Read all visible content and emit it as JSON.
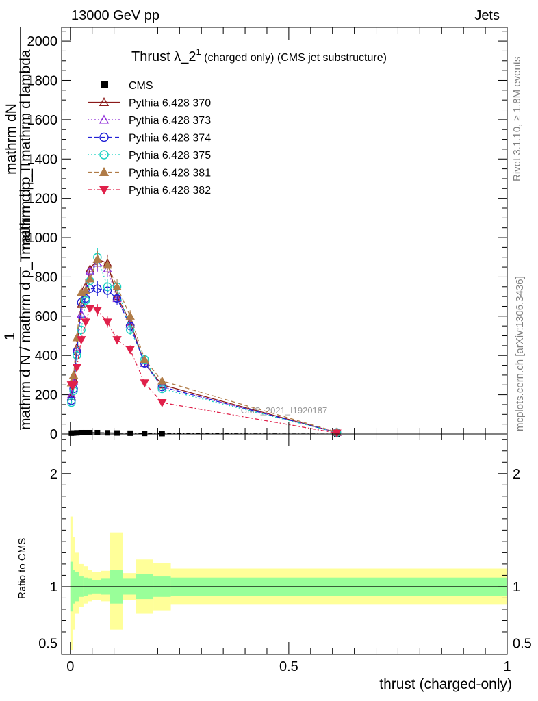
{
  "header": {
    "energy_label": "13000 GeV pp",
    "process_label": "Jets",
    "side_label_rivet": "Rivet 3.1.10, ≥ 1.8M events",
    "side_label_mcplots": "mcplots.cern.ch [arXiv:1306.3436]",
    "watermark": "CMS_2021_I1920187"
  },
  "chart_data": [
    {
      "type": "line",
      "title_main": "Thrust λ_2",
      "title_sup": "1",
      "title_suffix": " (charged only) (CMS jet substructure)",
      "ylabel_numerator": "mathrm dN",
      "ylabel_numerator_overlap": "mathrm d p_T mathrm d lambda",
      "ylabel_one": "1",
      "ylabel_denominator": "mathrm d N / mathrm d p_T mathrm d p_T",
      "xlim": [
        -0.02,
        1.0
      ],
      "ylim": [
        0,
        2070
      ],
      "yticks": [
        "0",
        "200",
        "400",
        "600",
        "800",
        "1000",
        "1200",
        "1400",
        "1600",
        "1800",
        "2000"
      ],
      "x": [
        0.0025,
        0.0075,
        0.015,
        0.025,
        0.035,
        0.045,
        0.062,
        0.085,
        0.107,
        0.137,
        0.17,
        0.21,
        0.61
      ],
      "series": [
        {
          "name": "CMS",
          "color": "#000000",
          "marker": "square",
          "dash": "",
          "values": [
            4,
            5,
            6,
            7,
            7,
            7,
            7,
            6,
            5,
            4,
            3,
            2,
            0.1
          ]
        },
        {
          "name": "Pythia 6.428 370",
          "color": "#8B1A1A",
          "marker": "triangle-open",
          "dash": "",
          "values": [
            190,
            280,
            440,
            660,
            750,
            840,
            890,
            870,
            700,
            570,
            360,
            250,
            8
          ]
        },
        {
          "name": "Pythia 6.428 373",
          "color": "#8E2BD8",
          "marker": "triangle-open",
          "dash": "2,3",
          "values": [
            200,
            270,
            430,
            610,
            730,
            830,
            870,
            840,
            690,
            560,
            360,
            240,
            8
          ]
        },
        {
          "name": "Pythia 6.428 374",
          "color": "#2121D6",
          "marker": "circle-open",
          "dash": "6,4",
          "values": [
            170,
            230,
            420,
            670,
            690,
            740,
            740,
            730,
            690,
            550,
            360,
            240,
            8
          ]
        },
        {
          "name": "Pythia 6.428 375",
          "color": "#16D1C1",
          "marker": "circle-open",
          "dash": "2,3",
          "values": [
            160,
            220,
            400,
            530,
            680,
            780,
            900,
            750,
            750,
            530,
            380,
            230,
            8
          ]
        },
        {
          "name": "Pythia 6.428 381",
          "color": "#B07C48",
          "marker": "triangle-filled",
          "dash": "6,4",
          "values": [
            260,
            300,
            490,
            720,
            730,
            790,
            890,
            860,
            750,
            600,
            380,
            270,
            10
          ]
        },
        {
          "name": "Pythia 6.428 382",
          "color": "#E0204A",
          "marker": "triangle-down-filled",
          "dash": "6,3,2,3",
          "values": [
            250,
            250,
            340,
            480,
            570,
            640,
            630,
            570,
            480,
            430,
            260,
            160,
            5
          ]
        }
      ]
    },
    {
      "type": "area",
      "ylabel": "Ratio to CMS",
      "xlabel": "thrust (charged-only)",
      "xlim": [
        -0.02,
        1.0
      ],
      "ylim": [
        0.4,
        2.35
      ],
      "xticks": [
        "0",
        "0.5",
        "1"
      ],
      "yticks": [
        "0.5",
        "1",
        "2"
      ],
      "bins": [
        {
          "lo": 0.0,
          "hi": 0.005,
          "inner": [
            0.78,
            1.22
          ],
          "outer": [
            0.44,
            1.62
          ]
        },
        {
          "lo": 0.005,
          "hi": 0.01,
          "inner": [
            0.85,
            1.15
          ],
          "outer": [
            0.62,
            1.44
          ]
        },
        {
          "lo": 0.01,
          "hi": 0.02,
          "inner": [
            0.87,
            1.13
          ],
          "outer": [
            0.76,
            1.3
          ]
        },
        {
          "lo": 0.02,
          "hi": 0.03,
          "inner": [
            0.91,
            1.09
          ],
          "outer": [
            0.82,
            1.2
          ]
        },
        {
          "lo": 0.03,
          "hi": 0.04,
          "inner": [
            0.92,
            1.08
          ],
          "outer": [
            0.85,
            1.18
          ]
        },
        {
          "lo": 0.04,
          "hi": 0.05,
          "inner": [
            0.93,
            1.07
          ],
          "outer": [
            0.87,
            1.15
          ]
        },
        {
          "lo": 0.05,
          "hi": 0.07,
          "inner": [
            0.94,
            1.06
          ],
          "outer": [
            0.88,
            1.13
          ]
        },
        {
          "lo": 0.07,
          "hi": 0.09,
          "inner": [
            0.93,
            1.07
          ],
          "outer": [
            0.87,
            1.14
          ]
        },
        {
          "lo": 0.09,
          "hi": 0.12,
          "inner": [
            0.85,
            1.15
          ],
          "outer": [
            0.62,
            1.48
          ]
        },
        {
          "lo": 0.12,
          "hi": 0.15,
          "inner": [
            0.93,
            1.07
          ],
          "outer": [
            0.88,
            1.12
          ]
        },
        {
          "lo": 0.15,
          "hi": 0.19,
          "inner": [
            0.89,
            1.11
          ],
          "outer": [
            0.76,
            1.24
          ]
        },
        {
          "lo": 0.19,
          "hi": 0.23,
          "inner": [
            0.91,
            1.09
          ],
          "outer": [
            0.79,
            1.21
          ]
        },
        {
          "lo": 0.23,
          "hi": 1.0,
          "inner": [
            0.92,
            1.08
          ],
          "outer": [
            0.84,
            1.16
          ]
        }
      ]
    }
  ]
}
